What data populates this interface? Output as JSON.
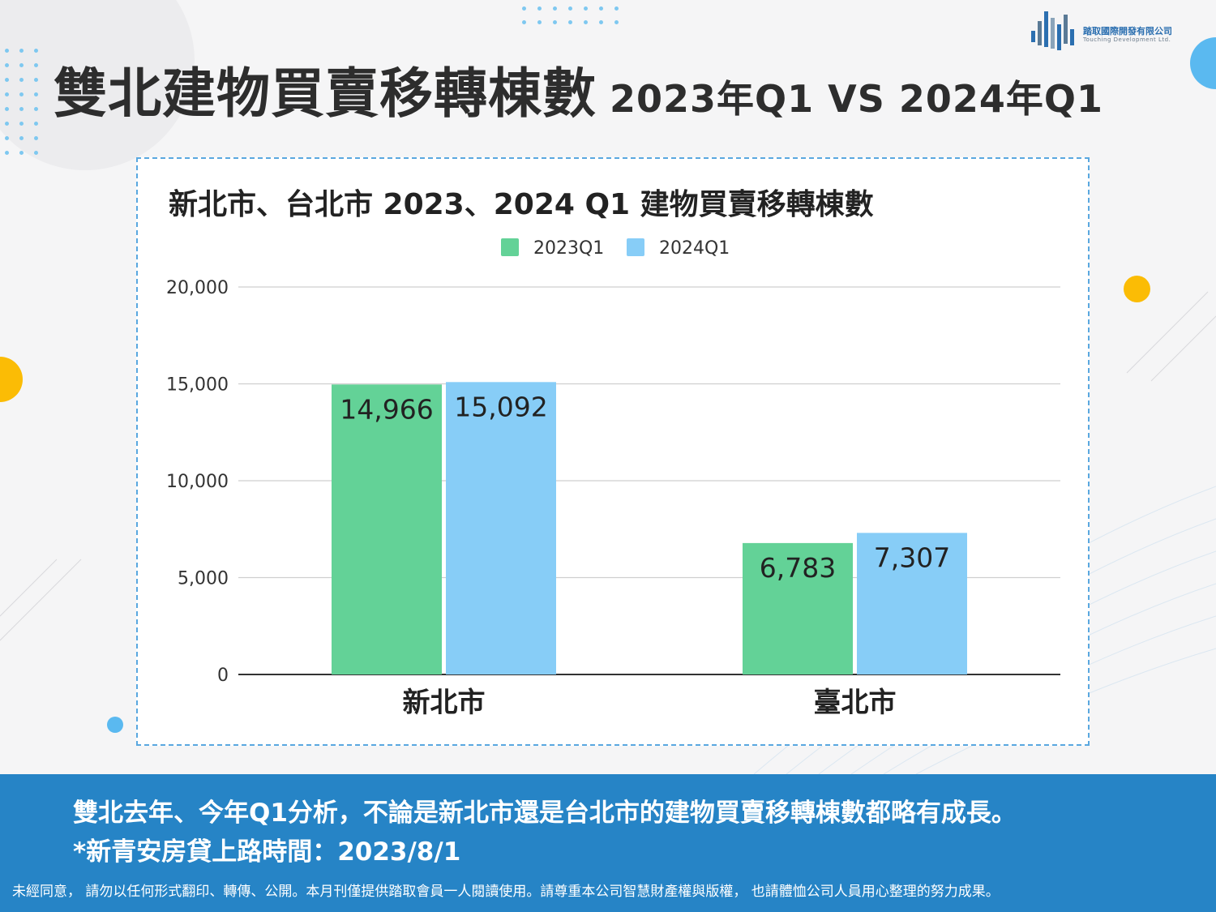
{
  "header": {
    "title": "雙北建物買賣移轉棟數",
    "subtitle": "2023年Q1 VS 2024年Q1"
  },
  "logo": {
    "name": "踏取國際開發有限公司",
    "name_en": "Touching Development Ltd."
  },
  "chart_data": {
    "type": "bar",
    "title": "新北市、台北市 2023、2024  Q1 建物買賣移轉棟數",
    "categories": [
      "新北市",
      "臺北市"
    ],
    "series": [
      {
        "name": "2023Q1",
        "values": [
          14966,
          6783
        ],
        "labels": [
          "14,966",
          "6,783"
        ],
        "color": "#63d297"
      },
      {
        "name": "2024Q1",
        "values": [
          15092,
          7307
        ],
        "labels": [
          "15,092",
          "7,307"
        ],
        "color": "#87cdf7"
      }
    ],
    "ylim": [
      0,
      20000
    ],
    "yticks": [
      0,
      5000,
      10000,
      15000,
      20000
    ],
    "ytick_labels": [
      "0",
      "5,000",
      "10,000",
      "15,000",
      "20,000"
    ],
    "grid": true,
    "legend": "top-center"
  },
  "footer": {
    "note1": "雙北去年、今年Q1分析，不論是新北市還是台北市的建物買賣移轉棟數都略有成長。",
    "note2": "*新青安房貸上路時間：2023/8/1",
    "disclaimer": "未經同意， 請勿以任何形式翻印、轉傳、公開。本月刊僅提供踏取會員一人閱讀使用。請尊重本公司智慧財產權與版權， 也請體恤公司人員用心整理的努力成果。"
  },
  "colors": {
    "accent_blue": "#2684c6",
    "dot_orange": "#fbbc05",
    "dot_blue": "#5ab9f0"
  }
}
